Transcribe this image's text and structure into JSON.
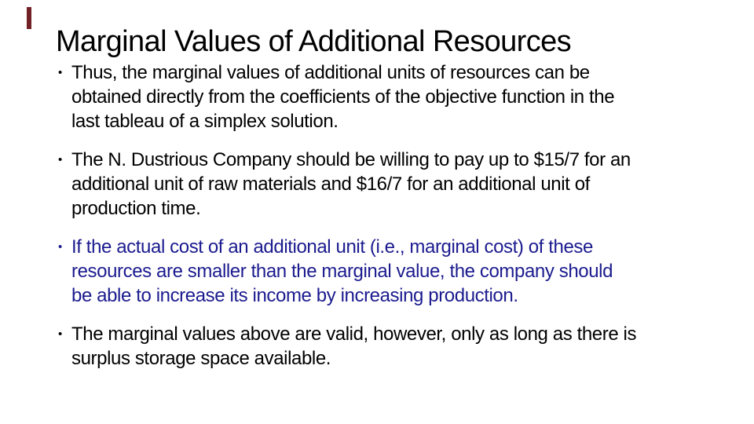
{
  "slide": {
    "background_color": "#ffffff",
    "accent_mark_color": "#722126",
    "title": "Marginal Values of Additional Resources",
    "title_color": "#000000",
    "bullet_glyph": "•",
    "bullets": [
      {
        "text": "Thus, the marginal values of additional units of resources can be\nobtained directly from the coefficients of the objective function in the\nlast tableau of a simplex solution.",
        "color": "#000000"
      },
      {
        "text": "The N. Dustrious Company should be willing to pay up to $15/7 for an\nadditional unit of raw materials and $16/7 for an additional unit of\nproduction time.",
        "color": "#000000"
      },
      {
        "text": "If the actual cost of an additional unit (i.e., marginal cost) of these\nresources are smaller than the marginal value, the company should\nbe able to increase its income by increasing production.",
        "color": "#1B1B8F"
      },
      {
        "text": "The marginal values above are valid, however, only as long as there is\nsurplus storage space available.",
        "color": "#000000"
      }
    ]
  }
}
